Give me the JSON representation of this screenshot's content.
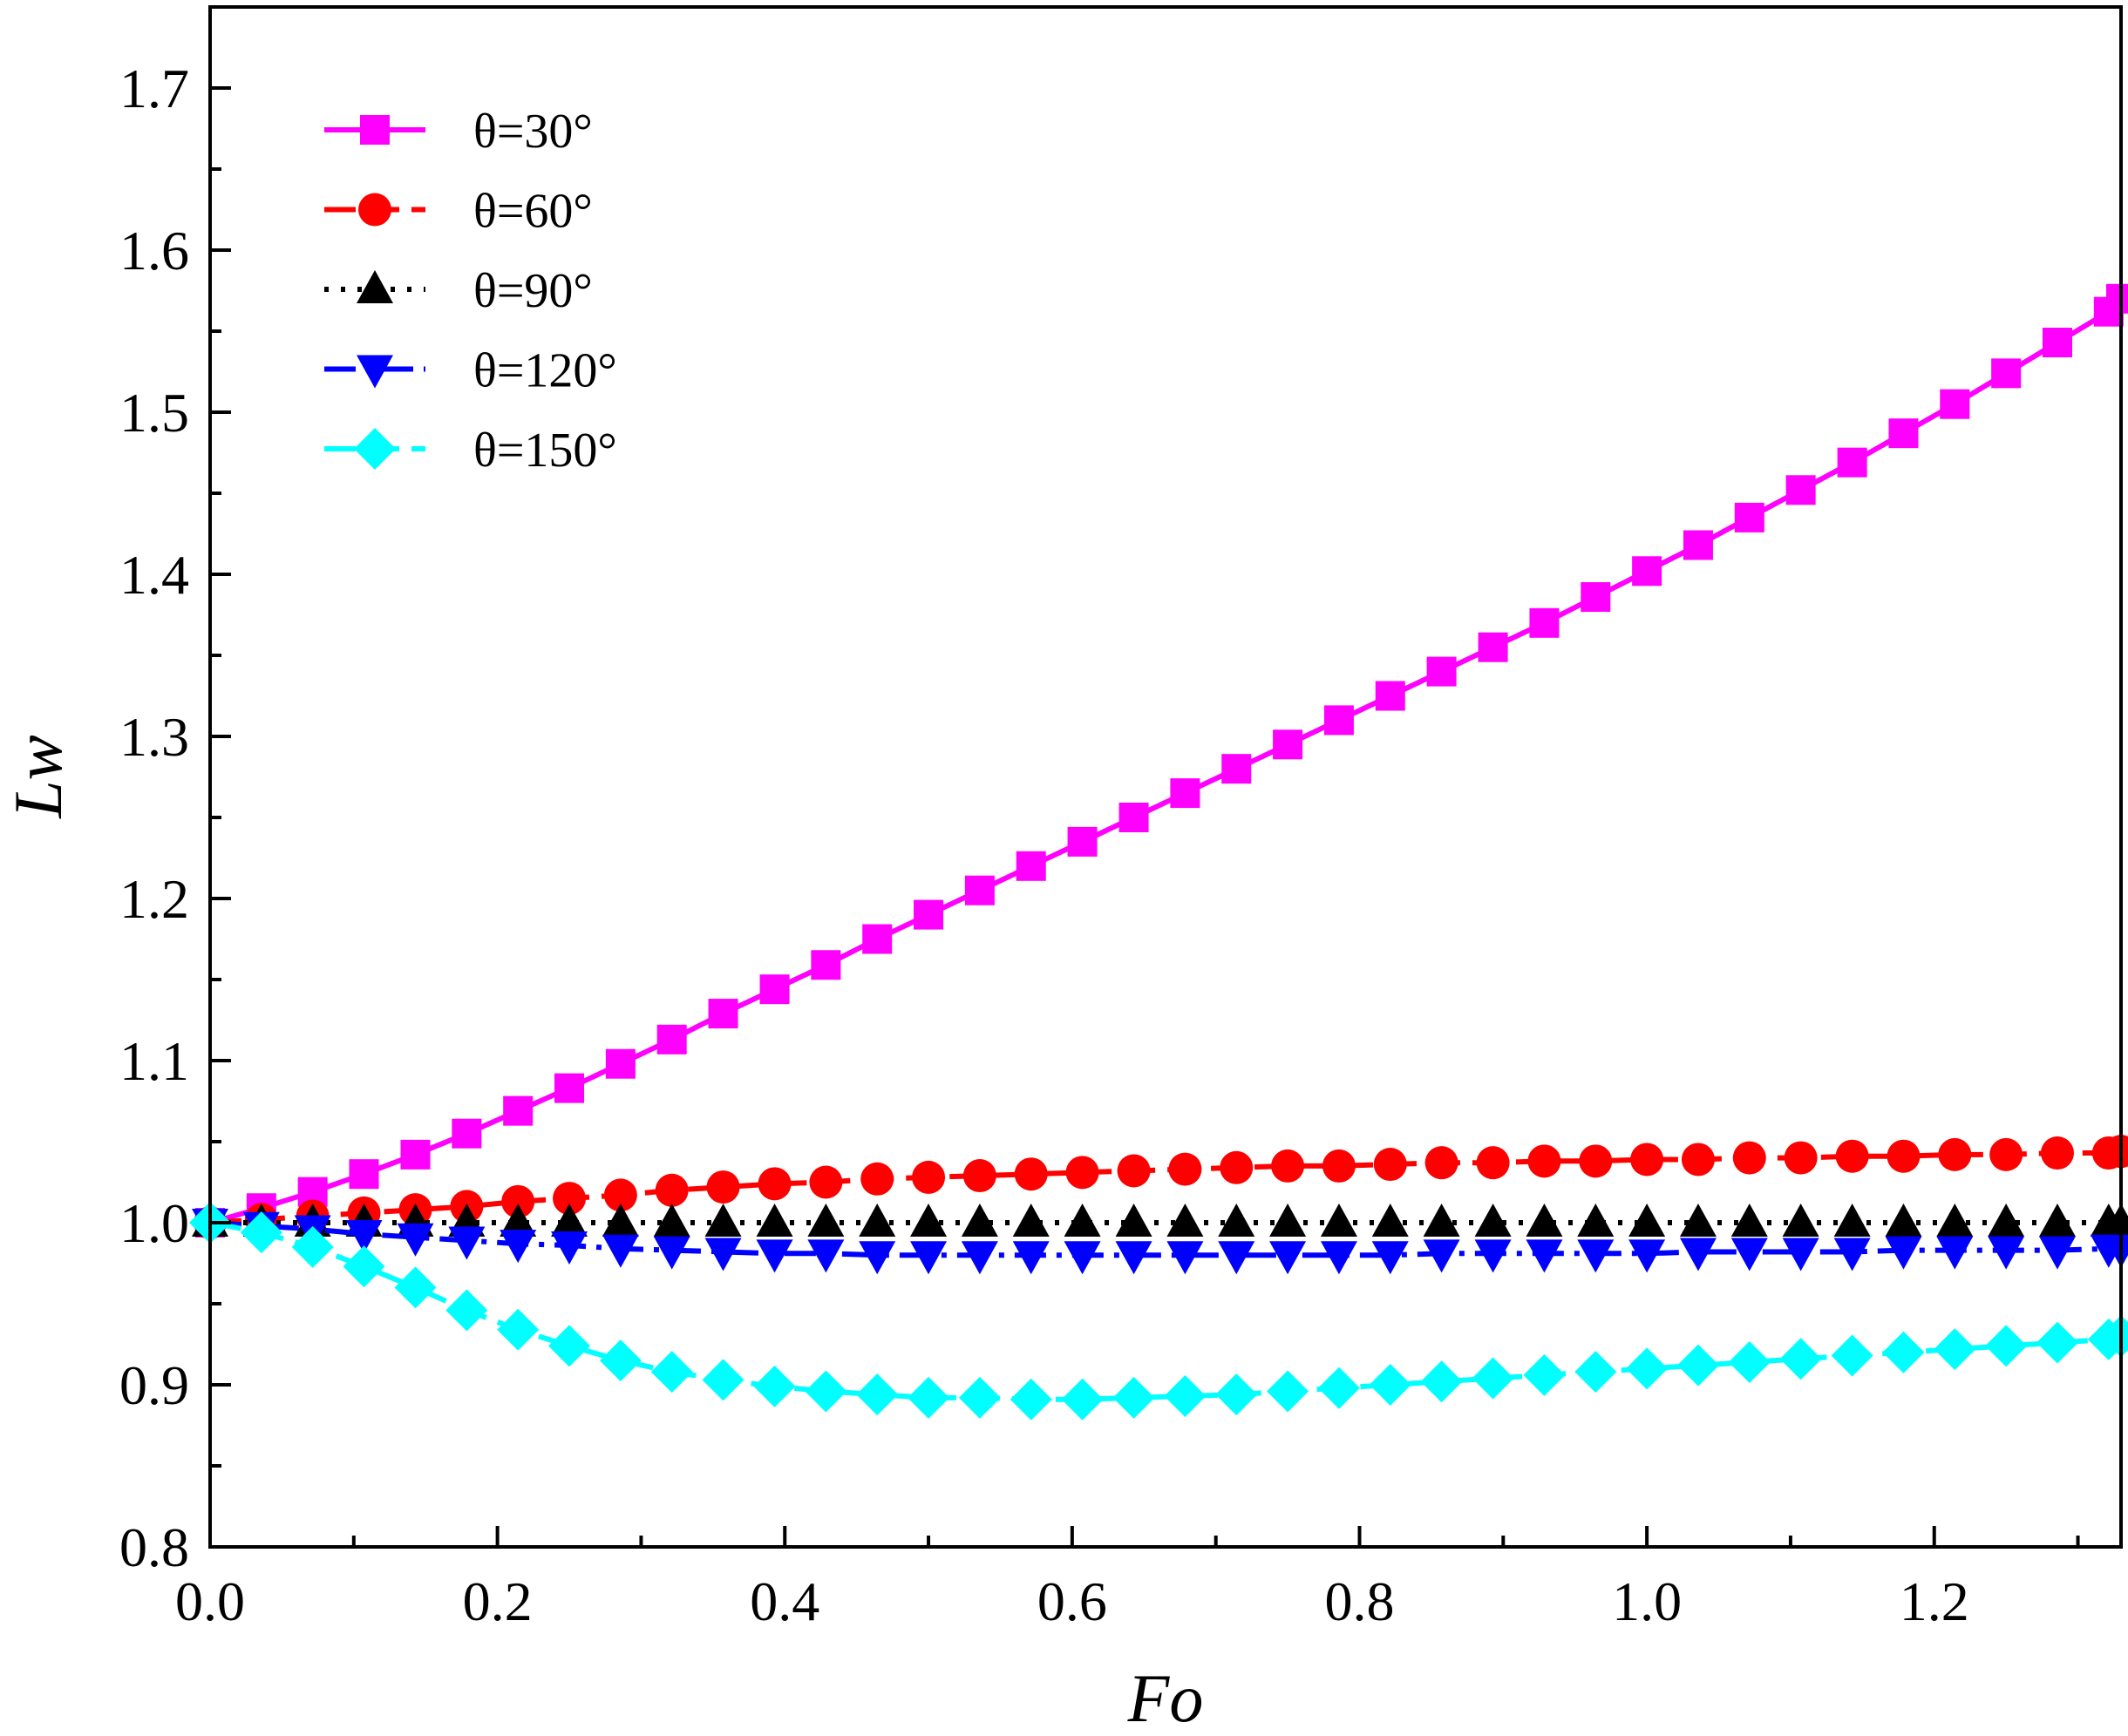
{
  "chart_data": {
    "type": "line",
    "title": "",
    "xlabel": "Fo",
    "ylabel": "Lw",
    "xlim": [
      0.0,
      1.33
    ],
    "ylim": [
      0.8,
      1.75
    ],
    "x_ticks": [
      0.0,
      0.2,
      0.4,
      0.6,
      0.8,
      1.0,
      1.2
    ],
    "x_tick_labels": [
      "0.0",
      "0.2",
      "0.4",
      "0.6",
      "0.8",
      "1.0",
      "1.2"
    ],
    "y_ticks": [
      0.8,
      0.9,
      1.0,
      1.1,
      1.2,
      1.3,
      1.4,
      1.5,
      1.6,
      1.7
    ],
    "y_tick_labels": [
      "0.8",
      "0.9",
      "1.0",
      "1.1",
      "1.2",
      "1.3",
      "1.4",
      "1.5",
      "1.6",
      "1.7"
    ],
    "grid": false,
    "legend_position": "top-left",
    "x": [
      0.0,
      0.0357,
      0.0714,
      0.1071,
      0.1429,
      0.1786,
      0.2143,
      0.25,
      0.2857,
      0.3214,
      0.3571,
      0.3929,
      0.4286,
      0.4643,
      0.5,
      0.5357,
      0.5714,
      0.6071,
      0.6429,
      0.6786,
      0.7143,
      0.75,
      0.7857,
      0.8214,
      0.8571,
      0.8929,
      0.9286,
      0.9643,
      1.0,
      1.0357,
      1.0714,
      1.1071,
      1.1429,
      1.1786,
      1.2143,
      1.25,
      1.2857,
      1.3214,
      1.33
    ],
    "series": [
      {
        "name": "θ=30°",
        "color": "#ff00ff",
        "marker": "square",
        "line": "solid",
        "values": [
          1.0,
          1.009,
          1.019,
          1.03,
          1.042,
          1.055,
          1.069,
          1.083,
          1.098,
          1.113,
          1.129,
          1.144,
          1.159,
          1.175,
          1.19,
          1.205,
          1.22,
          1.235,
          1.25,
          1.265,
          1.28,
          1.295,
          1.31,
          1.325,
          1.34,
          1.355,
          1.37,
          1.386,
          1.402,
          1.418,
          1.435,
          1.452,
          1.469,
          1.487,
          1.505,
          1.524,
          1.543,
          1.562,
          1.57
        ]
      },
      {
        "name": "θ=60°",
        "color": "#ff0000",
        "marker": "circle",
        "line": "dashed",
        "values": [
          1.0,
          1.002,
          1.004,
          1.006,
          1.008,
          1.01,
          1.013,
          1.015,
          1.017,
          1.02,
          1.022,
          1.024,
          1.025,
          1.027,
          1.028,
          1.029,
          1.03,
          1.031,
          1.032,
          1.033,
          1.034,
          1.035,
          1.035,
          1.036,
          1.037,
          1.037,
          1.038,
          1.038,
          1.039,
          1.039,
          1.04,
          1.04,
          1.041,
          1.041,
          1.042,
          1.042,
          1.043,
          1.043,
          1.044
        ]
      },
      {
        "name": "θ=90°",
        "color": "#000000",
        "marker": "triangle-up",
        "line": "dotted",
        "values": [
          1.0,
          1.0,
          1.0,
          1.0,
          1.0,
          1.0,
          1.0,
          1.0,
          1.0,
          1.0,
          1.0,
          1.0,
          1.0,
          1.0,
          1.0,
          1.0,
          1.0,
          1.0,
          1.0,
          1.0,
          1.0,
          1.0,
          1.0,
          1.0,
          1.0,
          1.0,
          1.0,
          1.0,
          1.0,
          1.0,
          1.0,
          1.0,
          1.0,
          1.0,
          1.0,
          1.0,
          1.0,
          1.0,
          1.0
        ]
      },
      {
        "name": "θ=120°",
        "color": "#0000ff",
        "marker": "triangle-down",
        "line": "dash-dot",
        "values": [
          1.0,
          0.998,
          0.996,
          0.993,
          0.991,
          0.989,
          0.987,
          0.986,
          0.984,
          0.983,
          0.982,
          0.981,
          0.981,
          0.98,
          0.98,
          0.98,
          0.98,
          0.98,
          0.98,
          0.98,
          0.98,
          0.98,
          0.98,
          0.98,
          0.981,
          0.981,
          0.981,
          0.981,
          0.981,
          0.982,
          0.982,
          0.982,
          0.982,
          0.983,
          0.983,
          0.983,
          0.983,
          0.984,
          0.984
        ]
      },
      {
        "name": "θ=150°",
        "color": "#00ffff",
        "marker": "diamond",
        "line": "dashed",
        "values": [
          1.0,
          0.994,
          0.985,
          0.973,
          0.96,
          0.946,
          0.934,
          0.924,
          0.915,
          0.908,
          0.903,
          0.899,
          0.896,
          0.894,
          0.892,
          0.892,
          0.891,
          0.891,
          0.892,
          0.893,
          0.894,
          0.896,
          0.898,
          0.9,
          0.902,
          0.904,
          0.906,
          0.908,
          0.91,
          0.912,
          0.914,
          0.916,
          0.918,
          0.92,
          0.922,
          0.924,
          0.926,
          0.928,
          0.93
        ]
      }
    ]
  }
}
